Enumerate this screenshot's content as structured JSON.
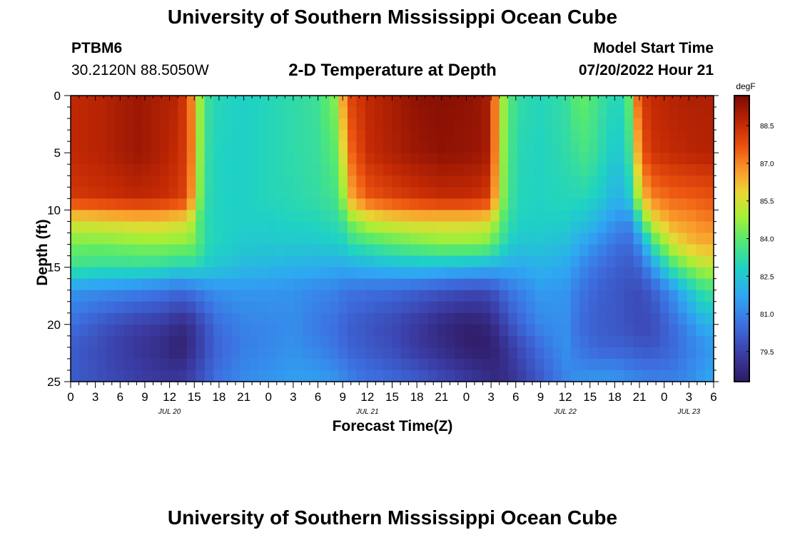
{
  "header": {
    "title": "University of Southern Mississippi Ocean Cube",
    "station_id": "PTBM6",
    "coordinates": "30.2120N  88.5050W",
    "plot_title": "2-D Temperature at Depth",
    "model_start_label": "Model Start Time",
    "model_start_value": "07/20/2022 Hour 21"
  },
  "footer": {
    "title": "University of Southern Mississippi Ocean Cube"
  },
  "chart_data": {
    "type": "heatmap",
    "title": "2-D Temperature at Depth",
    "xlabel": "Forecast Time(Z)",
    "ylabel": "Depth (ft)",
    "colorbar_label": "degF",
    "x_ticks": [
      "0",
      "3",
      "6",
      "9",
      "12",
      "15",
      "18",
      "21",
      "0",
      "3",
      "6",
      "9",
      "12",
      "15",
      "18",
      "21",
      "0",
      "3",
      "6",
      "9",
      "12",
      "15",
      "18",
      "21",
      "0",
      "3",
      "6"
    ],
    "date_labels": [
      {
        "text": "JUL 20",
        "at_hour": 12
      },
      {
        "text": "JUL 21",
        "at_hour": 36
      },
      {
        "text": "JUL 22",
        "at_hour": 60
      },
      {
        "text": "JUL 23",
        "at_hour": 75
      }
    ],
    "x_range_hours": [
      0,
      78
    ],
    "y_ticks": [
      "0",
      "5",
      "10",
      "15",
      "20",
      "25"
    ],
    "y_range_ft": [
      0,
      25
    ],
    "colorbar_ticks": [
      "88.5",
      "87.0",
      "85.5",
      "84.0",
      "82.5",
      "81.0",
      "79.5"
    ],
    "color_range_degF": [
      78.3,
      89.7
    ],
    "depth_profiles_ft": [
      0,
      5,
      9,
      11,
      13,
      15,
      17,
      20,
      22,
      25
    ],
    "time_hours": [
      0,
      4,
      8,
      11,
      12.5,
      14,
      15,
      16,
      17,
      18,
      21,
      24,
      27,
      30,
      32,
      33,
      34,
      36,
      39,
      42,
      45,
      48,
      50,
      51,
      52,
      54,
      57,
      60,
      61,
      62.5,
      64,
      66,
      67.5,
      68.5,
      69.5,
      71,
      73,
      75,
      76.5,
      78
    ],
    "temperature_degF": [
      [
        88.6,
        88.6,
        88.2,
        85.6,
        84.3,
        83.5,
        81.4,
        80.6,
        80.2,
        80.2
      ],
      [
        88.8,
        88.8,
        88.4,
        85.8,
        84.3,
        83.3,
        81.2,
        80.0,
        79.7,
        79.8
      ],
      [
        89.2,
        89.2,
        88.6,
        86.0,
        84.5,
        83.3,
        81.0,
        79.5,
        79.2,
        79.5
      ],
      [
        88.9,
        88.9,
        88.5,
        86.0,
        84.6,
        83.2,
        80.8,
        79.3,
        78.9,
        79.3
      ],
      [
        88.8,
        88.6,
        88.3,
        85.8,
        84.5,
        83.0,
        80.6,
        79.0,
        78.6,
        79.3
      ],
      [
        88.2,
        88.2,
        88.0,
        85.7,
        84.5,
        82.9,
        80.6,
        78.9,
        78.6,
        79.4
      ],
      [
        86.5,
        86.6,
        86.2,
        84.8,
        84.3,
        83.0,
        80.8,
        79.3,
        79.2,
        79.8
      ],
      [
        84.0,
        83.8,
        83.7,
        83.4,
        83.5,
        82.8,
        81.0,
        79.8,
        79.6,
        80.0
      ],
      [
        83.2,
        83.1,
        83.0,
        83.0,
        83.0,
        82.6,
        81.2,
        80.2,
        80.1,
        80.4
      ],
      [
        83.0,
        82.9,
        82.9,
        82.9,
        82.9,
        82.5,
        81.3,
        80.6,
        80.4,
        80.7
      ],
      [
        82.8,
        82.8,
        82.8,
        82.8,
        82.6,
        82.2,
        81.4,
        81.0,
        80.9,
        81.2
      ],
      [
        83.0,
        83.0,
        83.0,
        82.8,
        82.6,
        82.1,
        81.4,
        81.1,
        81.1,
        81.4
      ],
      [
        83.2,
        83.2,
        83.1,
        82.9,
        82.6,
        82.0,
        81.3,
        81.2,
        81.3,
        81.6
      ],
      [
        83.5,
        83.4,
        83.3,
        83.0,
        82.6,
        81.9,
        81.1,
        80.8,
        81.0,
        81.6
      ],
      [
        84.5,
        84.0,
        83.6,
        83.2,
        82.7,
        81.8,
        81.0,
        80.6,
        80.7,
        81.4
      ],
      [
        86.6,
        85.6,
        84.6,
        83.5,
        82.8,
        81.8,
        80.8,
        80.4,
        80.5,
        81.2
      ],
      [
        88.0,
        87.4,
        86.5,
        84.4,
        83.2,
        81.9,
        80.7,
        80.2,
        80.3,
        81.0
      ],
      [
        88.6,
        88.5,
        87.6,
        85.3,
        83.5,
        82.0,
        80.6,
        80.0,
        80.1,
        80.7
      ],
      [
        89.0,
        88.9,
        88.0,
        85.7,
        83.9,
        82.2,
        80.5,
        79.7,
        79.8,
        80.5
      ],
      [
        89.4,
        89.2,
        88.3,
        85.9,
        84.2,
        82.3,
        80.3,
        79.3,
        79.3,
        80.2
      ],
      [
        89.5,
        89.4,
        88.5,
        85.9,
        84.5,
        82.2,
        80.0,
        78.8,
        78.9,
        79.8
      ],
      [
        89.4,
        89.3,
        88.5,
        85.9,
        84.5,
        82.1,
        79.8,
        78.5,
        78.5,
        79.4
      ],
      [
        89.2,
        89.2,
        88.3,
        85.8,
        84.4,
        82.0,
        79.8,
        78.6,
        78.4,
        79.1
      ],
      [
        88.8,
        88.8,
        88.1,
        85.5,
        84.2,
        81.9,
        79.9,
        78.8,
        78.5,
        78.9
      ],
      [
        85.3,
        85.2,
        85.0,
        84.2,
        83.4,
        81.9,
        80.3,
        79.3,
        78.8,
        78.8
      ],
      [
        83.3,
        83.1,
        83.0,
        82.9,
        82.5,
        81.8,
        80.9,
        80.2,
        79.6,
        79.2
      ],
      [
        83.0,
        82.9,
        82.9,
        82.8,
        82.5,
        82.0,
        81.5,
        81.1,
        80.6,
        80.1
      ],
      [
        83.3,
        83.2,
        83.0,
        82.8,
        82.3,
        81.8,
        81.4,
        81.3,
        81.3,
        81.0
      ],
      [
        83.9,
        83.4,
        83.0,
        82.6,
        82.0,
        81.5,
        81.0,
        80.8,
        80.9,
        81.3
      ],
      [
        84.1,
        83.7,
        83.0,
        82.4,
        81.6,
        81.0,
        80.6,
        80.4,
        80.6,
        81.4
      ],
      [
        83.5,
        83.3,
        82.7,
        82.0,
        81.2,
        80.6,
        80.3,
        80.2,
        80.3,
        81.5
      ],
      [
        83.0,
        82.6,
        82.0,
        81.4,
        80.7,
        80.3,
        80.1,
        80.1,
        80.3,
        81.5
      ],
      [
        83.2,
        82.8,
        82.2,
        81.0,
        80.4,
        80.1,
        79.9,
        79.9,
        80.2,
        81.3
      ],
      [
        87.0,
        85.8,
        84.2,
        82.0,
        80.8,
        80.2,
        79.8,
        79.8,
        80.1,
        81.2
      ],
      [
        88.3,
        87.8,
        86.3,
        84.2,
        81.8,
        80.6,
        79.9,
        79.7,
        80.0,
        81.1
      ],
      [
        88.6,
        88.4,
        87.1,
        85.8,
        83.8,
        81.8,
        80.4,
        79.9,
        80.1,
        81.0
      ],
      [
        88.8,
        88.6,
        87.4,
        86.6,
        85.4,
        83.5,
        81.3,
        80.5,
        80.4,
        81.0
      ],
      [
        88.9,
        88.7,
        87.5,
        86.8,
        86.2,
        84.5,
        82.5,
        81.2,
        80.9,
        81.2
      ],
      [
        88.9,
        88.8,
        87.6,
        87.0,
        86.4,
        85.0,
        83.3,
        81.8,
        81.2,
        81.5
      ],
      [
        88.9,
        88.8,
        87.7,
        87.1,
        86.4,
        85.2,
        83.6,
        82.1,
        81.5,
        81.8
      ]
    ]
  },
  "colorscale": [
    {
      "v": 0.0,
      "c": "#2f1a63"
    },
    {
      "v": 0.1,
      "c": "#3b3da6"
    },
    {
      "v": 0.2,
      "c": "#3d6ee0"
    },
    {
      "v": 0.3,
      "c": "#2fa6f3"
    },
    {
      "v": 0.4,
      "c": "#1fd2c4"
    },
    {
      "v": 0.5,
      "c": "#58ea6c"
    },
    {
      "v": 0.58,
      "c": "#a8ee36"
    },
    {
      "v": 0.66,
      "c": "#e8d834"
    },
    {
      "v": 0.74,
      "c": "#fa9a2c"
    },
    {
      "v": 0.82,
      "c": "#ec5410"
    },
    {
      "v": 0.9,
      "c": "#c42a04"
    },
    {
      "v": 1.0,
      "c": "#7c0a04"
    }
  ]
}
